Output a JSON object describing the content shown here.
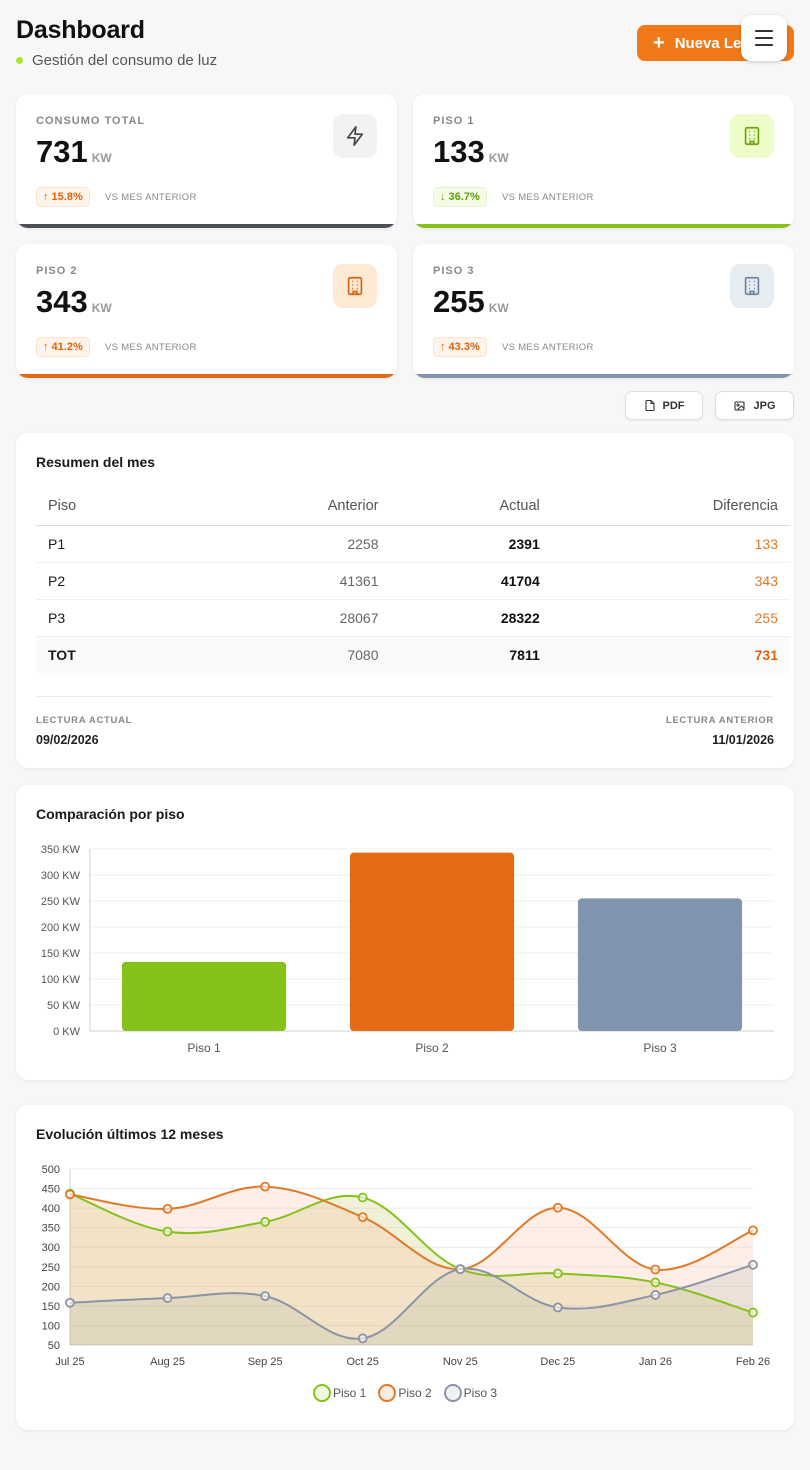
{
  "header": {
    "title": "Dashboard",
    "subtitle": "Gestión del consumo de luz",
    "new_button_label": "Nueva Le",
    "menu_icon": "hamburger-icon"
  },
  "stats": [
    {
      "label": "CONSUMO TOTAL",
      "value": "731",
      "unit": "KW",
      "trend": "up",
      "change": "↑ 15.8%",
      "vs": "VS MES ANTERIOR",
      "icon": "bolt-icon",
      "color": "#4b5057"
    },
    {
      "label": "PISO 1",
      "value": "133",
      "unit": "KW",
      "trend": "down",
      "change": "↓ 36.7%",
      "vs": "VS MES ANTERIOR",
      "icon": "building-icon",
      "color": "#84c21a"
    },
    {
      "label": "PISO 2",
      "value": "343",
      "unit": "KW",
      "trend": "up",
      "change": "↑ 41.2%",
      "vs": "VS MES ANTERIOR",
      "icon": "building-icon",
      "color": "#e56a14"
    },
    {
      "label": "PISO 3",
      "value": "255",
      "unit": "KW",
      "trend": "up",
      "change": "↑ 43.3%",
      "vs": "VS MES ANTERIOR",
      "icon": "building-icon",
      "color": "#8094ad"
    }
  ],
  "export": {
    "pdf_label": "PDF",
    "jpg_label": "JPG"
  },
  "summary": {
    "title": "Resumen del mes",
    "columns": [
      "Piso",
      "Anterior",
      "Actual",
      "Diferencia"
    ],
    "rows": [
      [
        "P1",
        "2258",
        "2391",
        "133"
      ],
      [
        "P2",
        "41361",
        "41704",
        "343"
      ],
      [
        "P3",
        "28067",
        "28322",
        "255"
      ],
      [
        "TOT",
        "7080",
        "7811",
        "731"
      ]
    ],
    "current_label": "LECTURA ACTUAL",
    "current_date": "09/02/2026",
    "previous_label": "LECTURA ANTERIOR",
    "previous_date": "11/01/2026"
  },
  "chart_data": [
    {
      "type": "bar",
      "title": "Comparación por piso",
      "categories": [
        "Piso 1",
        "Piso 2",
        "Piso 3"
      ],
      "values": [
        133,
        343,
        255
      ],
      "colors": [
        "#84c21a",
        "#e56a14",
        "#8094ad"
      ],
      "ylim": [
        0,
        350
      ],
      "yticks": [
        "0 KW",
        "50 KW",
        "100 KW",
        "150 KW",
        "200 KW",
        "250 KW",
        "300 KW",
        "350 KW"
      ],
      "grid": true
    },
    {
      "type": "area",
      "title": "Evolución últimos 12 meses",
      "categories": [
        "Jul 25",
        "Aug 25",
        "Sep 25",
        "Oct 25",
        "Nov 25",
        "Dec 25",
        "Jan 26",
        "Feb 26"
      ],
      "ylim": [
        50,
        500
      ],
      "yticks": [
        "50",
        "100",
        "150",
        "200",
        "250",
        "300",
        "350",
        "400",
        "450",
        "500"
      ],
      "series": [
        {
          "name": "Piso 1",
          "values": [
            437,
            340,
            365,
            427,
            244,
            233,
            210,
            133
          ],
          "color": "#84c21a"
        },
        {
          "name": "Piso 2",
          "values": [
            435,
            398,
            455,
            377,
            244,
            401,
            243,
            343
          ],
          "color": "#e07a26"
        },
        {
          "name": "Piso 3",
          "values": [
            158,
            170,
            175,
            67,
            244,
            146,
            178,
            255
          ],
          "color": "#8a94a4"
        }
      ],
      "legend": "bottom-center",
      "grid": true
    }
  ]
}
